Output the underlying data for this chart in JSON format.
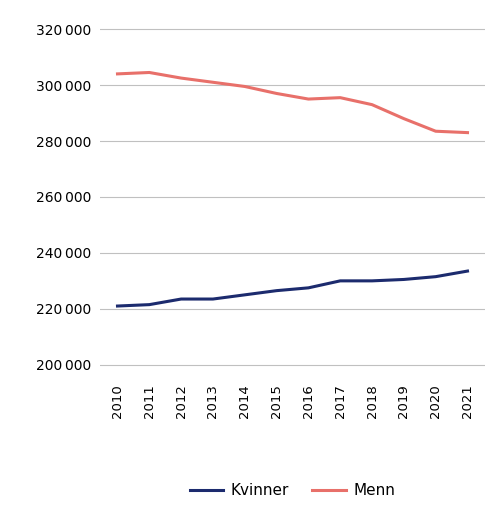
{
  "years": [
    2010,
    2011,
    2012,
    2013,
    2014,
    2015,
    2016,
    2017,
    2018,
    2019,
    2020,
    2021
  ],
  "kvinner": [
    221000,
    221500,
    223500,
    223500,
    225000,
    226500,
    227500,
    230000,
    230000,
    230500,
    231500,
    233500
  ],
  "menn": [
    304000,
    304500,
    302500,
    301000,
    299500,
    297000,
    295000,
    295500,
    293000,
    288000,
    283500,
    283000
  ],
  "kvinner_color": "#1c2b6e",
  "menn_color": "#e8706a",
  "line_width": 2.2,
  "ylim": [
    195000,
    325000
  ],
  "yticks": [
    200000,
    220000,
    240000,
    260000,
    280000,
    300000,
    320000
  ],
  "legend_kvinner": "Kvinner",
  "legend_menn": "Menn",
  "background_color": "#ffffff",
  "grid_color": "#c0c0c0"
}
